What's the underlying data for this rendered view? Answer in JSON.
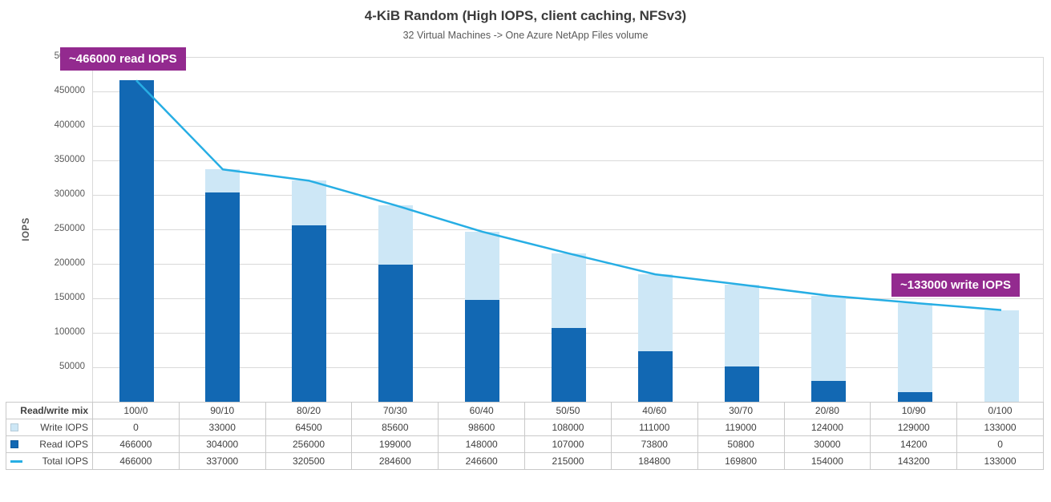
{
  "chart_data": {
    "type": "bar",
    "title": "4-KiB Random (High IOPS, client caching, NFSv3)",
    "subtitle": "32 Virtual Machines -> One Azure NetApp Files volume",
    "xlabel": "Read/write mix",
    "ylabel": "IOPS",
    "ylim": [
      0,
      500000
    ],
    "ytick_step": 50000,
    "grid": true,
    "legend_position": "table-left",
    "categories": [
      "100/0",
      "90/10",
      "80/20",
      "70/30",
      "60/40",
      "50/50",
      "40/60",
      "30/70",
      "20/80",
      "10/90",
      "0/100"
    ],
    "series": [
      {
        "name": "Write IOPS",
        "type": "bar",
        "stack": "top",
        "color": "#cde7f6",
        "values": [
          0,
          33000,
          64500,
          85600,
          98600,
          108000,
          111000,
          119000,
          124000,
          129000,
          133000
        ]
      },
      {
        "name": "Read IOPS",
        "type": "bar",
        "stack": "bottom",
        "color": "#1268b3",
        "values": [
          466000,
          304000,
          256000,
          199000,
          148000,
          107000,
          73800,
          50800,
          30000,
          14200,
          0
        ]
      },
      {
        "name": "Total IOPS",
        "type": "line",
        "color": "#27aee4",
        "values": [
          466000,
          337000,
          320500,
          284600,
          246600,
          215000,
          184800,
          169800,
          154000,
          143200,
          133000
        ]
      }
    ]
  },
  "annotations": {
    "read": "~466000 read IOPS",
    "write": "~133000 write IOPS"
  },
  "colors": {
    "annotation_bg": "#932a8f",
    "bar_read": "#1268b3",
    "bar_write": "#cde7f6",
    "line_total": "#27aee4",
    "gridline": "#d9d9d9"
  }
}
